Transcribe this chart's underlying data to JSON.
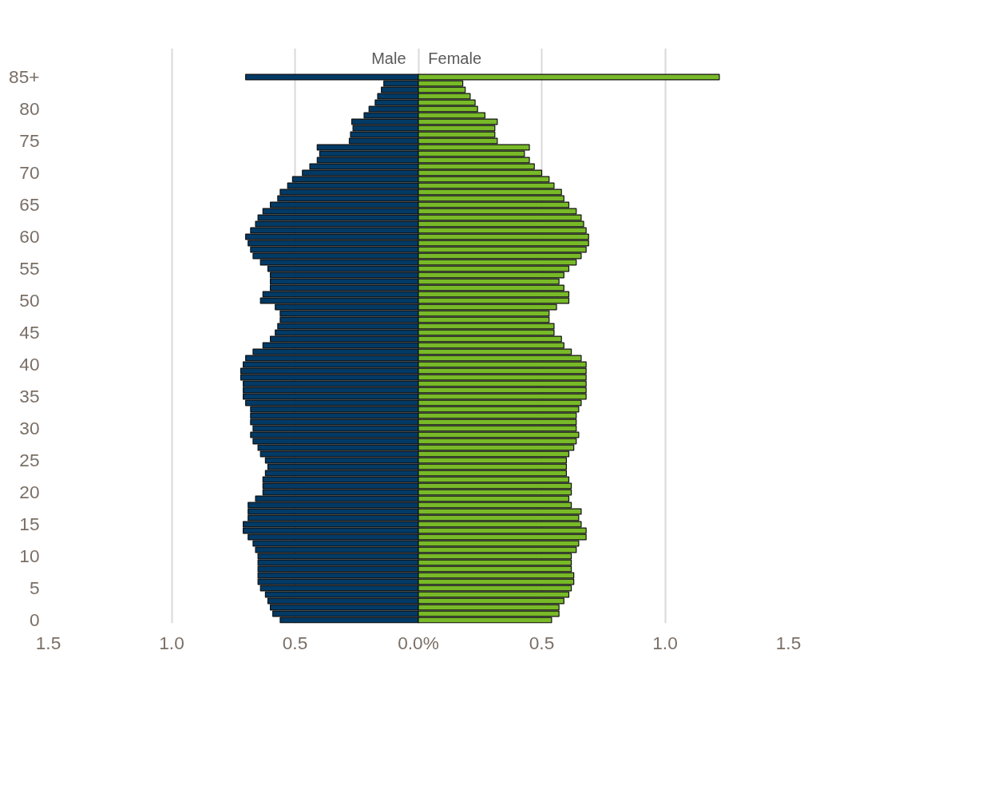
{
  "chart_data": {
    "type": "bar",
    "orientation": "horizontal",
    "categories": [
      "85+",
      null,
      null,
      null,
      null,
      "80",
      null,
      null,
      null,
      null,
      "75",
      null,
      null,
      null,
      null,
      "70",
      null,
      null,
      null,
      null,
      "65",
      null,
      null,
      null,
      null,
      "60",
      null,
      null,
      null,
      null,
      "55",
      null,
      null,
      null,
      null,
      "50",
      null,
      null,
      null,
      null,
      "45",
      null,
      null,
      null,
      null,
      "40",
      null,
      null,
      null,
      null,
      "35",
      null,
      null,
      null,
      null,
      "30",
      null,
      null,
      null,
      null,
      "25",
      null,
      null,
      null,
      null,
      "20",
      null,
      null,
      null,
      null,
      "15",
      null,
      null,
      null,
      null,
      "10",
      null,
      null,
      null,
      null,
      "5",
      null,
      null,
      null,
      null,
      "0"
    ],
    "series": [
      {
        "name": "Male",
        "color": "#023a66",
        "values": [
          -0.7,
          -0.14,
          -0.15,
          -0.165,
          -0.175,
          -0.2,
          -0.22,
          -0.27,
          -0.265,
          -0.275,
          -0.28,
          -0.41,
          -0.4,
          -0.41,
          -0.44,
          -0.47,
          -0.51,
          -0.53,
          -0.56,
          -0.57,
          -0.6,
          -0.63,
          -0.65,
          -0.66,
          -0.68,
          -0.7,
          -0.69,
          -0.68,
          -0.67,
          -0.64,
          -0.61,
          -0.6,
          -0.6,
          -0.6,
          -0.63,
          -0.64,
          -0.58,
          -0.56,
          -0.56,
          -0.57,
          -0.58,
          -0.6,
          -0.63,
          -0.67,
          -0.7,
          -0.71,
          -0.72,
          -0.72,
          -0.71,
          -0.71,
          -0.71,
          -0.7,
          -0.68,
          -0.68,
          -0.68,
          -0.67,
          -0.68,
          -0.67,
          -0.65,
          -0.64,
          -0.62,
          -0.61,
          -0.62,
          -0.63,
          -0.63,
          -0.63,
          -0.66,
          -0.69,
          -0.69,
          -0.69,
          -0.71,
          -0.71,
          -0.69,
          -0.67,
          -0.66,
          -0.65,
          -0.65,
          -0.65,
          -0.65,
          -0.65,
          -0.64,
          -0.62,
          -0.61,
          -0.6,
          -0.59,
          -0.56
        ]
      },
      {
        "name": "Female",
        "color": "#78b928",
        "values": [
          1.22,
          0.18,
          0.19,
          0.21,
          0.23,
          0.24,
          0.27,
          0.32,
          0.31,
          0.31,
          0.32,
          0.45,
          0.43,
          0.45,
          0.47,
          0.5,
          0.53,
          0.55,
          0.58,
          0.59,
          0.61,
          0.64,
          0.66,
          0.67,
          0.68,
          0.69,
          0.69,
          0.68,
          0.66,
          0.64,
          0.61,
          0.59,
          0.57,
          0.59,
          0.61,
          0.61,
          0.56,
          0.53,
          0.53,
          0.55,
          0.55,
          0.58,
          0.59,
          0.62,
          0.66,
          0.68,
          0.68,
          0.68,
          0.68,
          0.68,
          0.68,
          0.66,
          0.65,
          0.64,
          0.64,
          0.64,
          0.65,
          0.64,
          0.63,
          0.61,
          0.6,
          0.6,
          0.6,
          0.61,
          0.62,
          0.62,
          0.61,
          0.62,
          0.66,
          0.65,
          0.66,
          0.68,
          0.68,
          0.65,
          0.64,
          0.62,
          0.62,
          0.62,
          0.63,
          0.63,
          0.62,
          0.61,
          0.59,
          0.57,
          0.57,
          0.54
        ]
      }
    ],
    "xlim": [
      -1.5,
      1.5
    ],
    "xticks": [
      {
        "value": -1.5,
        "label": "1.5"
      },
      {
        "value": -1.0,
        "label": "1.0"
      },
      {
        "value": -0.5,
        "label": "0.5"
      },
      {
        "value": 0,
        "label": "0.0%"
      },
      0.5,
      {
        "value": 1.0,
        "label": "1.0"
      },
      1.5
    ],
    "grid": "x",
    "stacked": true
  }
}
